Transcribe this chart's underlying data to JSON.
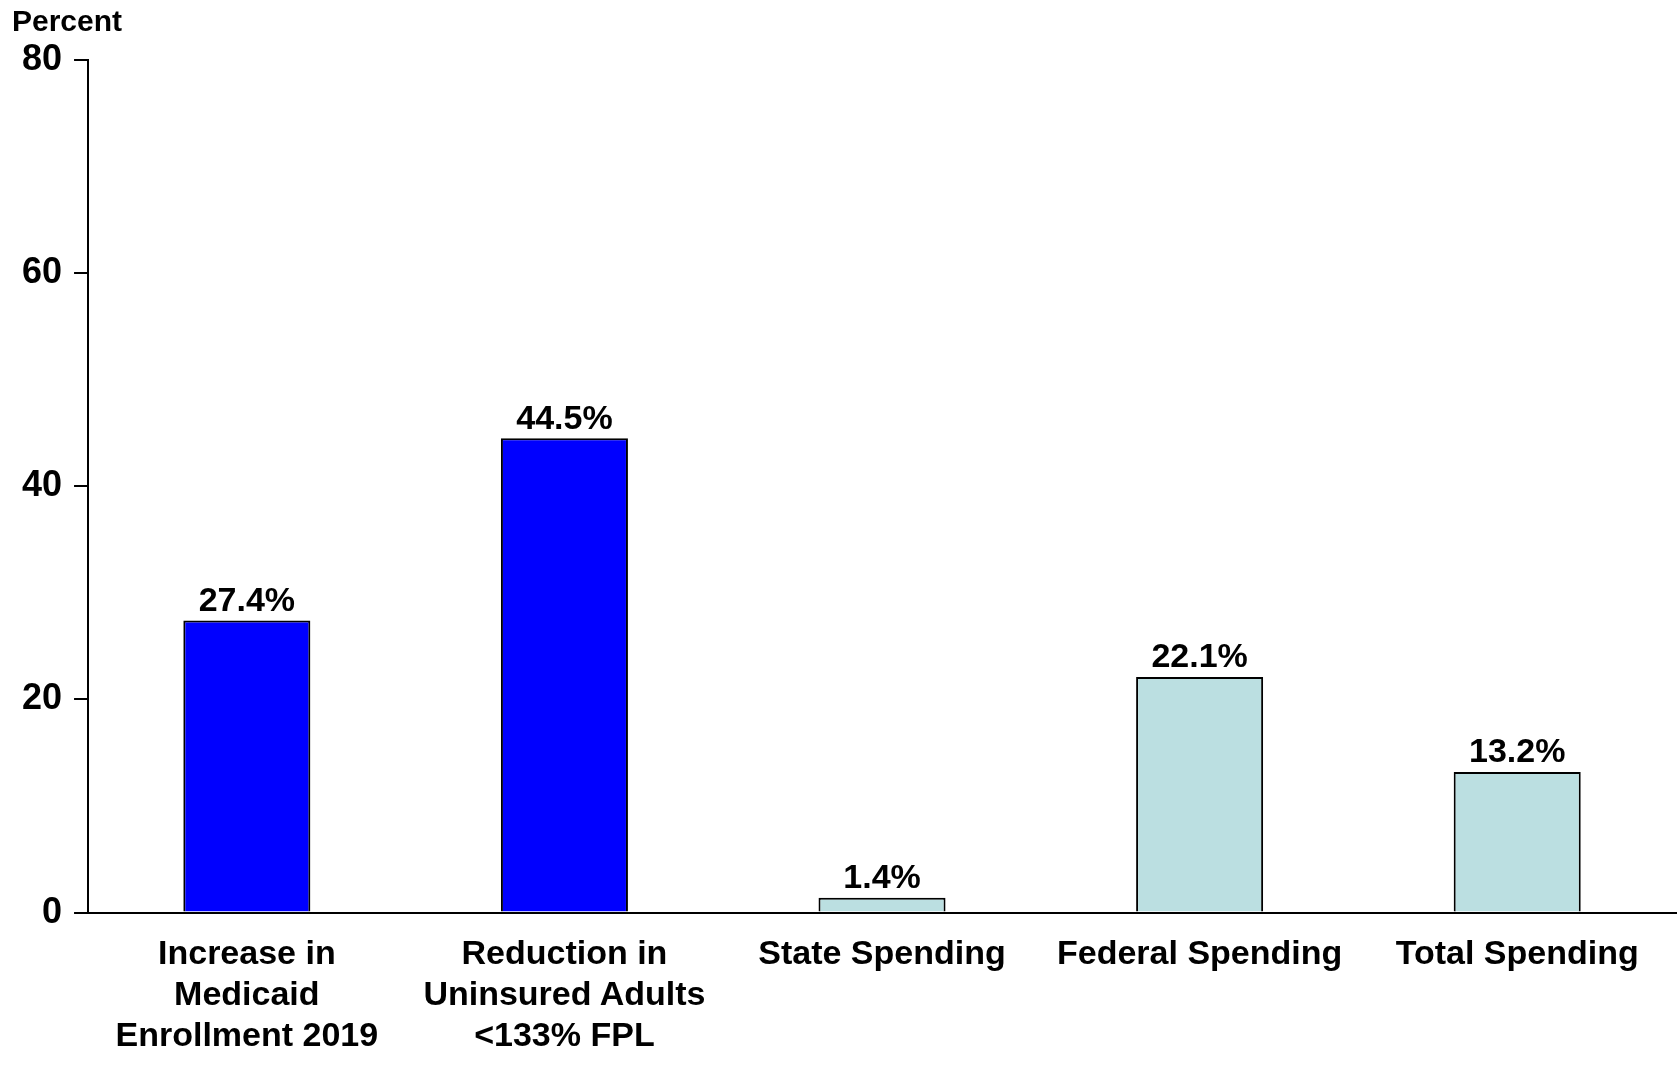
{
  "chart_data": {
    "type": "bar",
    "ylabel": "Percent",
    "categories": [
      "Increase in Medicaid Enrollment 2019",
      "Reduction in Uninsured Adults <133% FPL",
      "State Spending",
      "Federal Spending",
      "Total Spending"
    ],
    "values": [
      27.4,
      44.5,
      1.4,
      22.1,
      13.2
    ],
    "colors": [
      "#0000ff",
      "#0000ff",
      "#bbdfe1",
      "#bbdfe1",
      "#bbdfe1"
    ],
    "value_labels": [
      "27.4%",
      "44.5%",
      "1.4%",
      "22.1%",
      "13.2%"
    ],
    "ylim": [
      0,
      80
    ],
    "yticks": [
      0,
      20,
      40,
      60,
      80
    ],
    "grid": false,
    "legend": false
  }
}
